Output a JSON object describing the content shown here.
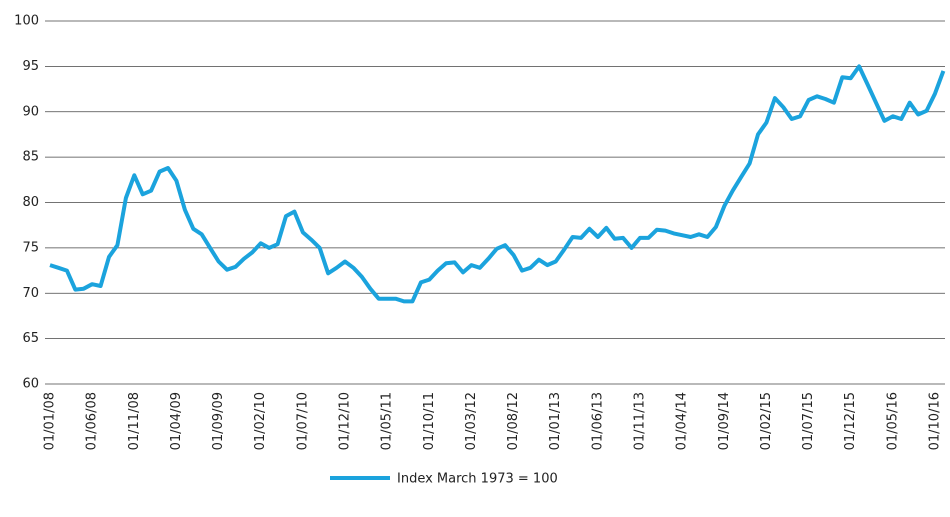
{
  "chart_data": {
    "type": "line",
    "categories": [
      "01/01/08",
      null,
      null,
      null,
      null,
      "01/06/08",
      null,
      null,
      null,
      null,
      "01/11/08",
      null,
      null,
      null,
      null,
      "01/04/09",
      null,
      null,
      null,
      null,
      "01/09/09",
      null,
      null,
      null,
      null,
      "01/02/10",
      null,
      null,
      null,
      null,
      "01/07/10",
      null,
      null,
      null,
      null,
      "01/12/10",
      null,
      null,
      null,
      null,
      "01/05/11",
      null,
      null,
      null,
      null,
      "01/10/11",
      null,
      null,
      null,
      null,
      "01/03/12",
      null,
      null,
      null,
      null,
      "01/08/12",
      null,
      null,
      null,
      null,
      "01/01/13",
      null,
      null,
      null,
      null,
      "01/06/13",
      null,
      null,
      null,
      null,
      "01/11/13",
      null,
      null,
      null,
      null,
      "01/04/14",
      null,
      null,
      null,
      null,
      "01/09/14",
      null,
      null,
      null,
      null,
      "01/02/15",
      null,
      null,
      null,
      null,
      "01/07/15",
      null,
      null,
      null,
      null,
      "01/12/15",
      null,
      null,
      null,
      null,
      "01/05/16",
      null,
      null,
      null,
      null,
      "01/10/16",
      null
    ],
    "series": [
      {
        "name": "Index March 1973 = 100",
        "color": "#1ba3dd",
        "values": [
          73.1,
          72.8,
          72.5,
          70.4,
          70.5,
          71.0,
          70.8,
          74.0,
          75.3,
          80.5,
          83.0,
          80.9,
          81.3,
          83.4,
          83.8,
          82.4,
          79.2,
          77.1,
          76.5,
          75.0,
          73.5,
          72.6,
          72.9,
          73.8,
          74.5,
          75.5,
          75.0,
          75.4,
          78.5,
          79.0,
          76.7,
          75.9,
          75.0,
          72.2,
          72.8,
          73.5,
          72.8,
          71.8,
          70.5,
          69.4,
          69.4,
          69.4,
          69.1,
          69.1,
          71.2,
          71.5,
          72.5,
          73.3,
          73.4,
          72.3,
          73.1,
          72.8,
          73.8,
          74.9,
          75.3,
          74.2,
          72.5,
          72.8,
          73.7,
          73.1,
          73.5,
          74.8,
          76.2,
          76.1,
          77.1,
          76.2,
          77.2,
          76.0,
          76.1,
          75.0,
          76.1,
          76.1,
          77.0,
          76.9,
          76.6,
          76.4,
          76.2,
          76.5,
          76.2,
          77.3,
          79.6,
          81.3,
          82.8,
          84.3,
          87.5,
          88.8,
          91.5,
          90.5,
          89.2,
          89.5,
          91.3,
          91.7,
          91.4,
          91.0,
          93.8,
          93.7,
          95.0,
          93.0,
          91.0,
          89.0,
          89.5,
          89.2,
          91.0,
          89.7,
          90.1,
          92.0,
          94.5
        ]
      }
    ],
    "ylim": [
      60,
      100
    ],
    "yticks": [
      60,
      65,
      70,
      75,
      80,
      85,
      90,
      95,
      100
    ],
    "grid": true
  }
}
